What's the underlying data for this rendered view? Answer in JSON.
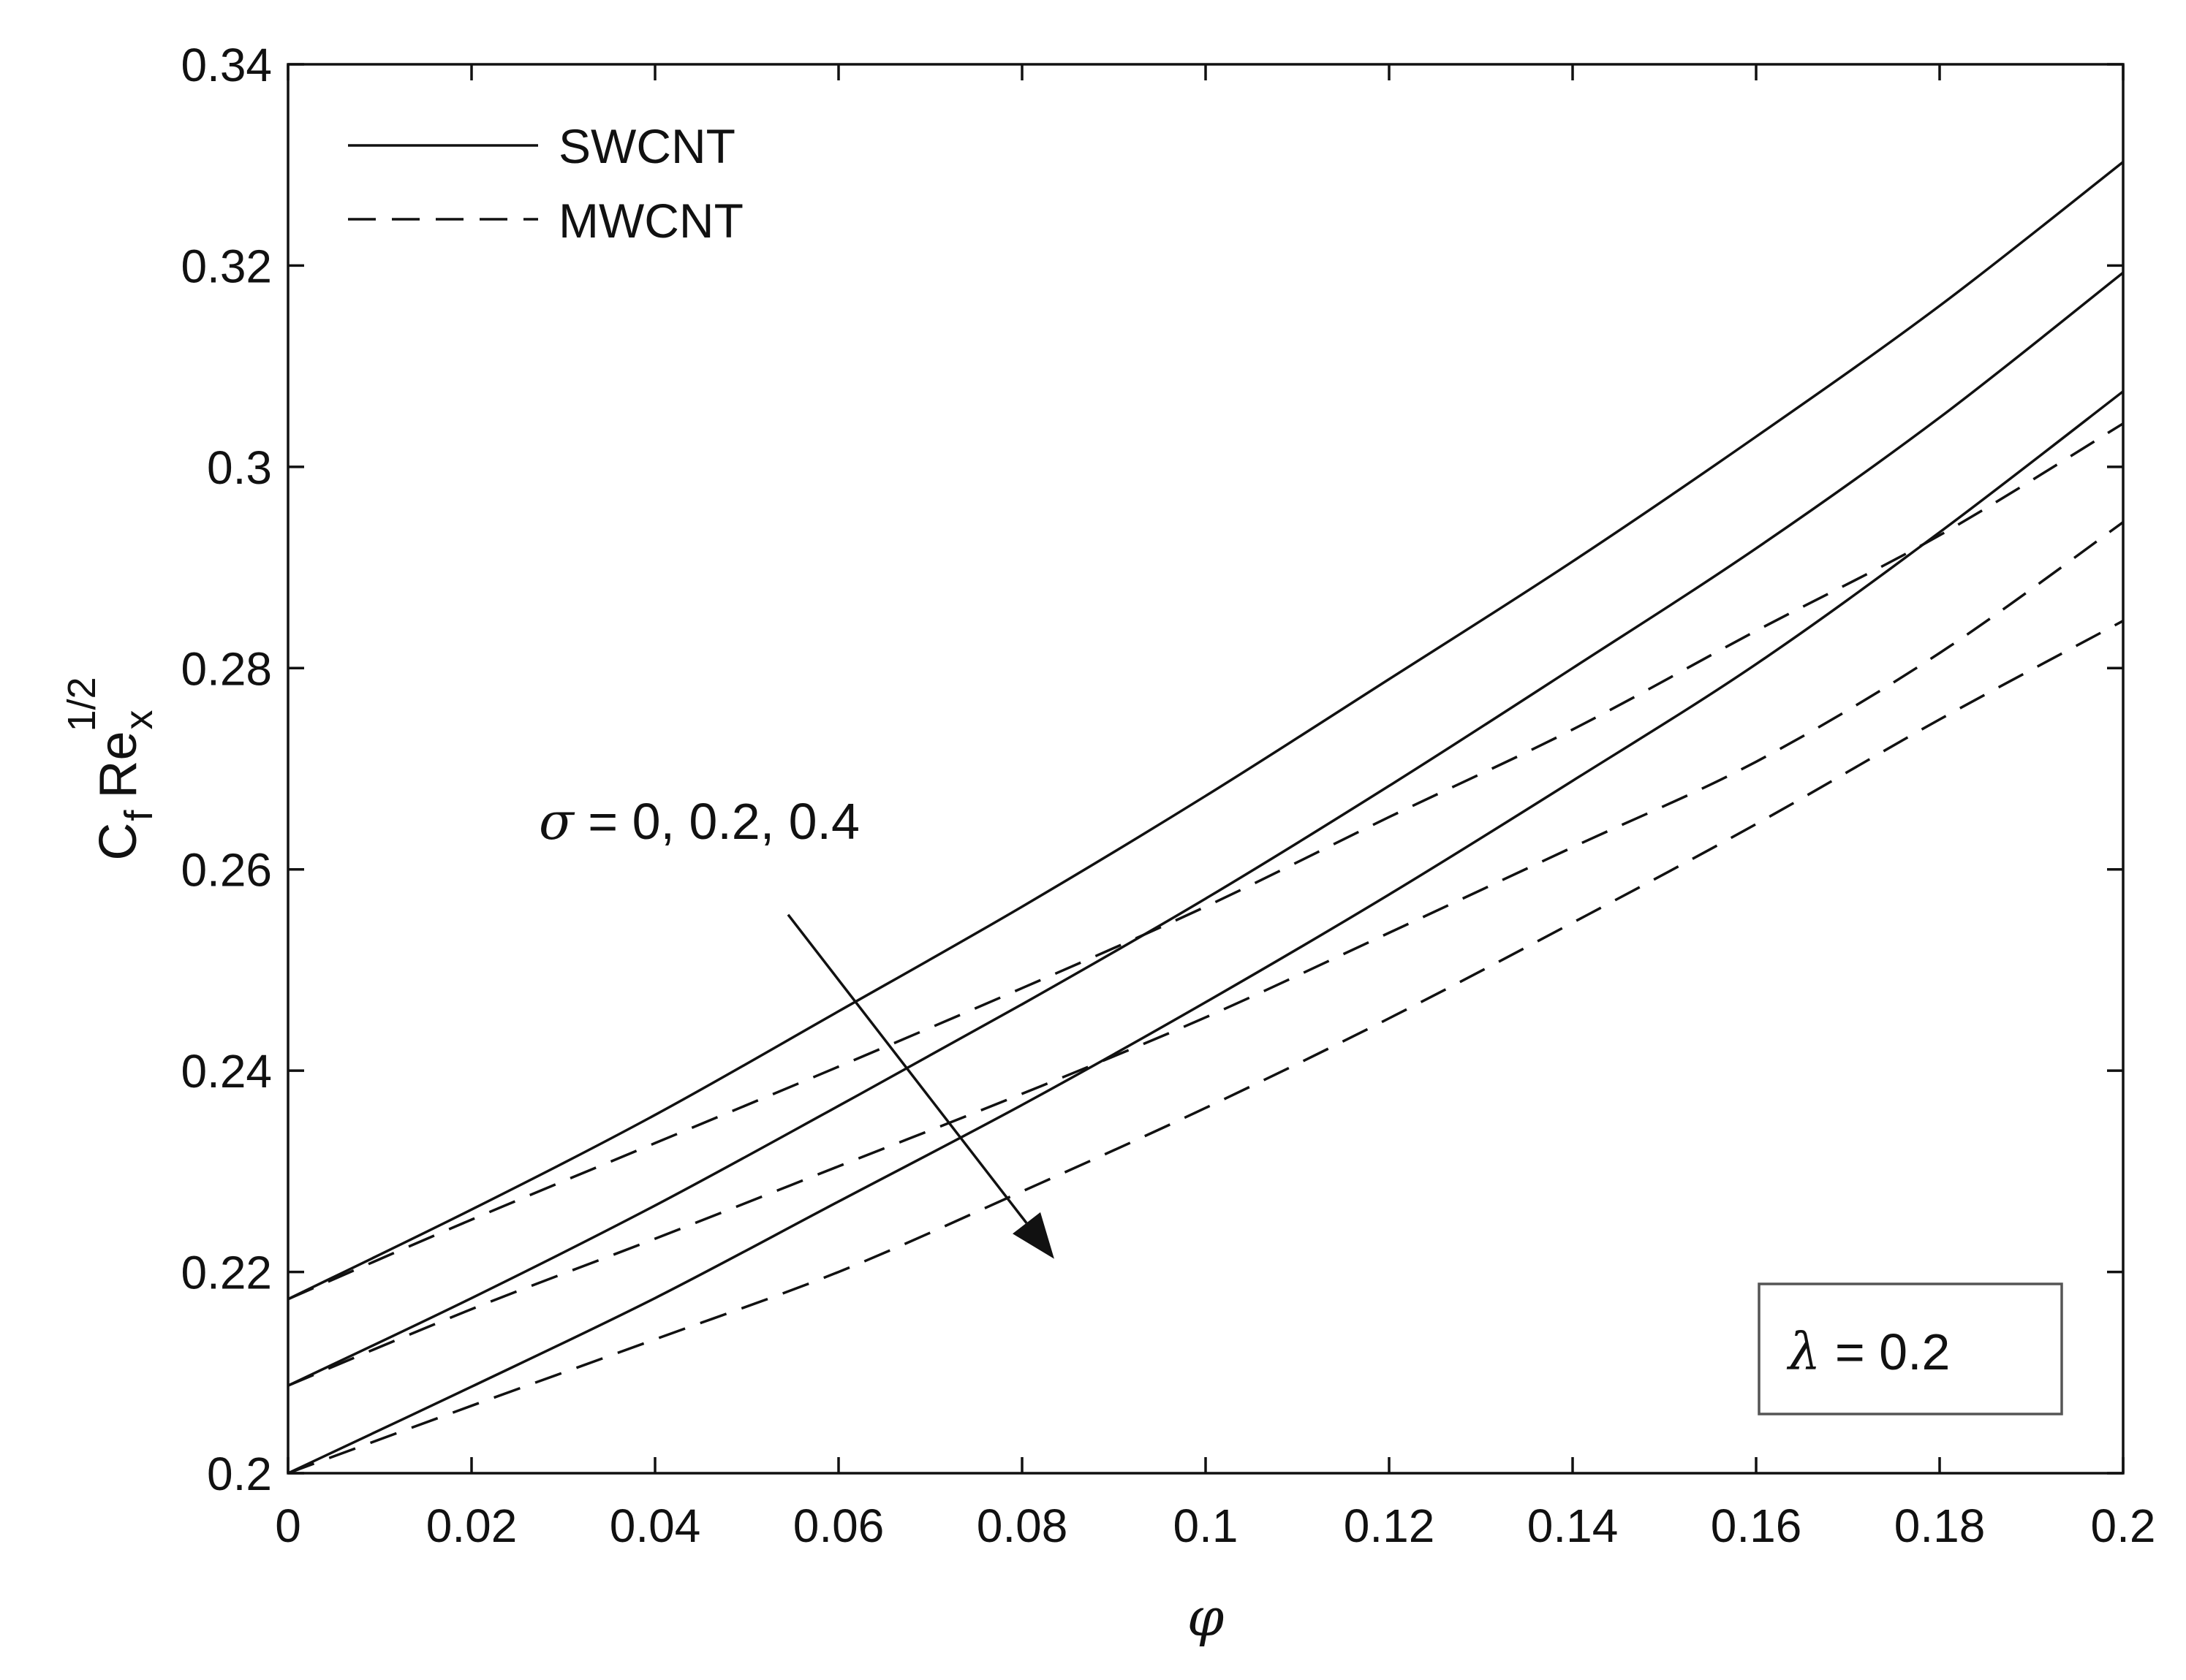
{
  "chart_data": {
    "type": "line",
    "title": "",
    "xlabel": "φ",
    "ylabel": {
      "main": "C",
      "main_sub": "f",
      "second": "Re",
      "second_sub": "x",
      "second_sup": "1/2"
    },
    "xlim": [
      0,
      0.2
    ],
    "ylim": [
      0.2,
      0.34
    ],
    "xticks": [
      0,
      0.02,
      0.04,
      0.06,
      0.08,
      0.1,
      0.12,
      0.14,
      0.16,
      0.18,
      0.2
    ],
    "xtick_labels": [
      "0",
      "0.02",
      "0.04",
      "0.06",
      "0.08",
      "0.1",
      "0.12",
      "0.14",
      "0.16",
      "0.18",
      "0.2"
    ],
    "yticks": [
      0.2,
      0.22,
      0.24,
      0.26,
      0.28,
      0.3,
      0.32,
      0.34
    ],
    "ytick_labels": [
      "0.2",
      "0.22",
      "0.24",
      "0.26",
      "0.28",
      "0.3",
      "0.32",
      "0.34"
    ],
    "grid": false,
    "legend": {
      "position": "top-left",
      "entries": [
        {
          "label": "SWCNT",
          "style": "solid"
        },
        {
          "label": "MWCNT",
          "style": "dashed"
        }
      ]
    },
    "x": [
      0,
      0.02,
      0.04,
      0.06,
      0.08,
      0.1,
      0.12,
      0.14,
      0.16,
      0.18,
      0.2
    ],
    "series": [
      {
        "name": "SWCNT σ = 0",
        "group": "SWCNT",
        "sigma": 0,
        "style": "solid",
        "values": [
          0.2173,
          0.2262,
          0.2356,
          0.2459,
          0.2563,
          0.2673,
          0.2789,
          0.2906,
          0.303,
          0.316,
          0.3303
        ]
      },
      {
        "name": "SWCNT σ = 0.2",
        "group": "SWCNT",
        "sigma": 0.2,
        "style": "solid",
        "values": [
          0.2087,
          0.2174,
          0.2266,
          0.2365,
          0.2466,
          0.2571,
          0.2683,
          0.28,
          0.2919,
          0.3049,
          0.3193
        ]
      },
      {
        "name": "SWCNT σ = 0.4",
        "group": "SWCNT",
        "sigma": 0.4,
        "style": "solid",
        "values": [
          0.2,
          0.2086,
          0.2174,
          0.227,
          0.2366,
          0.2468,
          0.2575,
          0.2688,
          0.2804,
          0.2935,
          0.3075
        ]
      },
      {
        "name": "MWCNT σ = 0",
        "group": "MWCNT",
        "sigma": 0,
        "style": "dashed",
        "values": [
          0.2173,
          0.2252,
          0.2328,
          0.2404,
          0.2482,
          0.2563,
          0.2652,
          0.2739,
          0.2837,
          0.2932,
          0.3043
        ]
      },
      {
        "name": "MWCNT σ = 0.2",
        "group": "MWCNT",
        "sigma": 0.2,
        "style": "dashed",
        "values": [
          0.2087,
          0.2163,
          0.2233,
          0.2305,
          0.2377,
          0.2453,
          0.2537,
          0.2622,
          0.2707,
          0.2815,
          0.2945
        ]
      },
      {
        "name": "MWCNT σ = 0.4",
        "group": "MWCNT",
        "sigma": 0.4,
        "style": "dashed",
        "values": [
          0.2,
          0.2067,
          0.2133,
          0.22,
          0.228,
          0.2363,
          0.2452,
          0.2547,
          0.2645,
          0.2749,
          0.2847
        ]
      }
    ],
    "annotations": [
      {
        "id": "sigma",
        "symbol": "σ",
        "text": " = 0, 0.2, 0.4",
        "arrow": {
          "from": [
            0.0545,
            0.2555
          ],
          "to": [
            0.0835,
            0.2213
          ]
        }
      },
      {
        "id": "lambda",
        "symbol": "λ",
        "text": " = 0.2",
        "boxed": true,
        "position": "bottom-right"
      }
    ]
  }
}
